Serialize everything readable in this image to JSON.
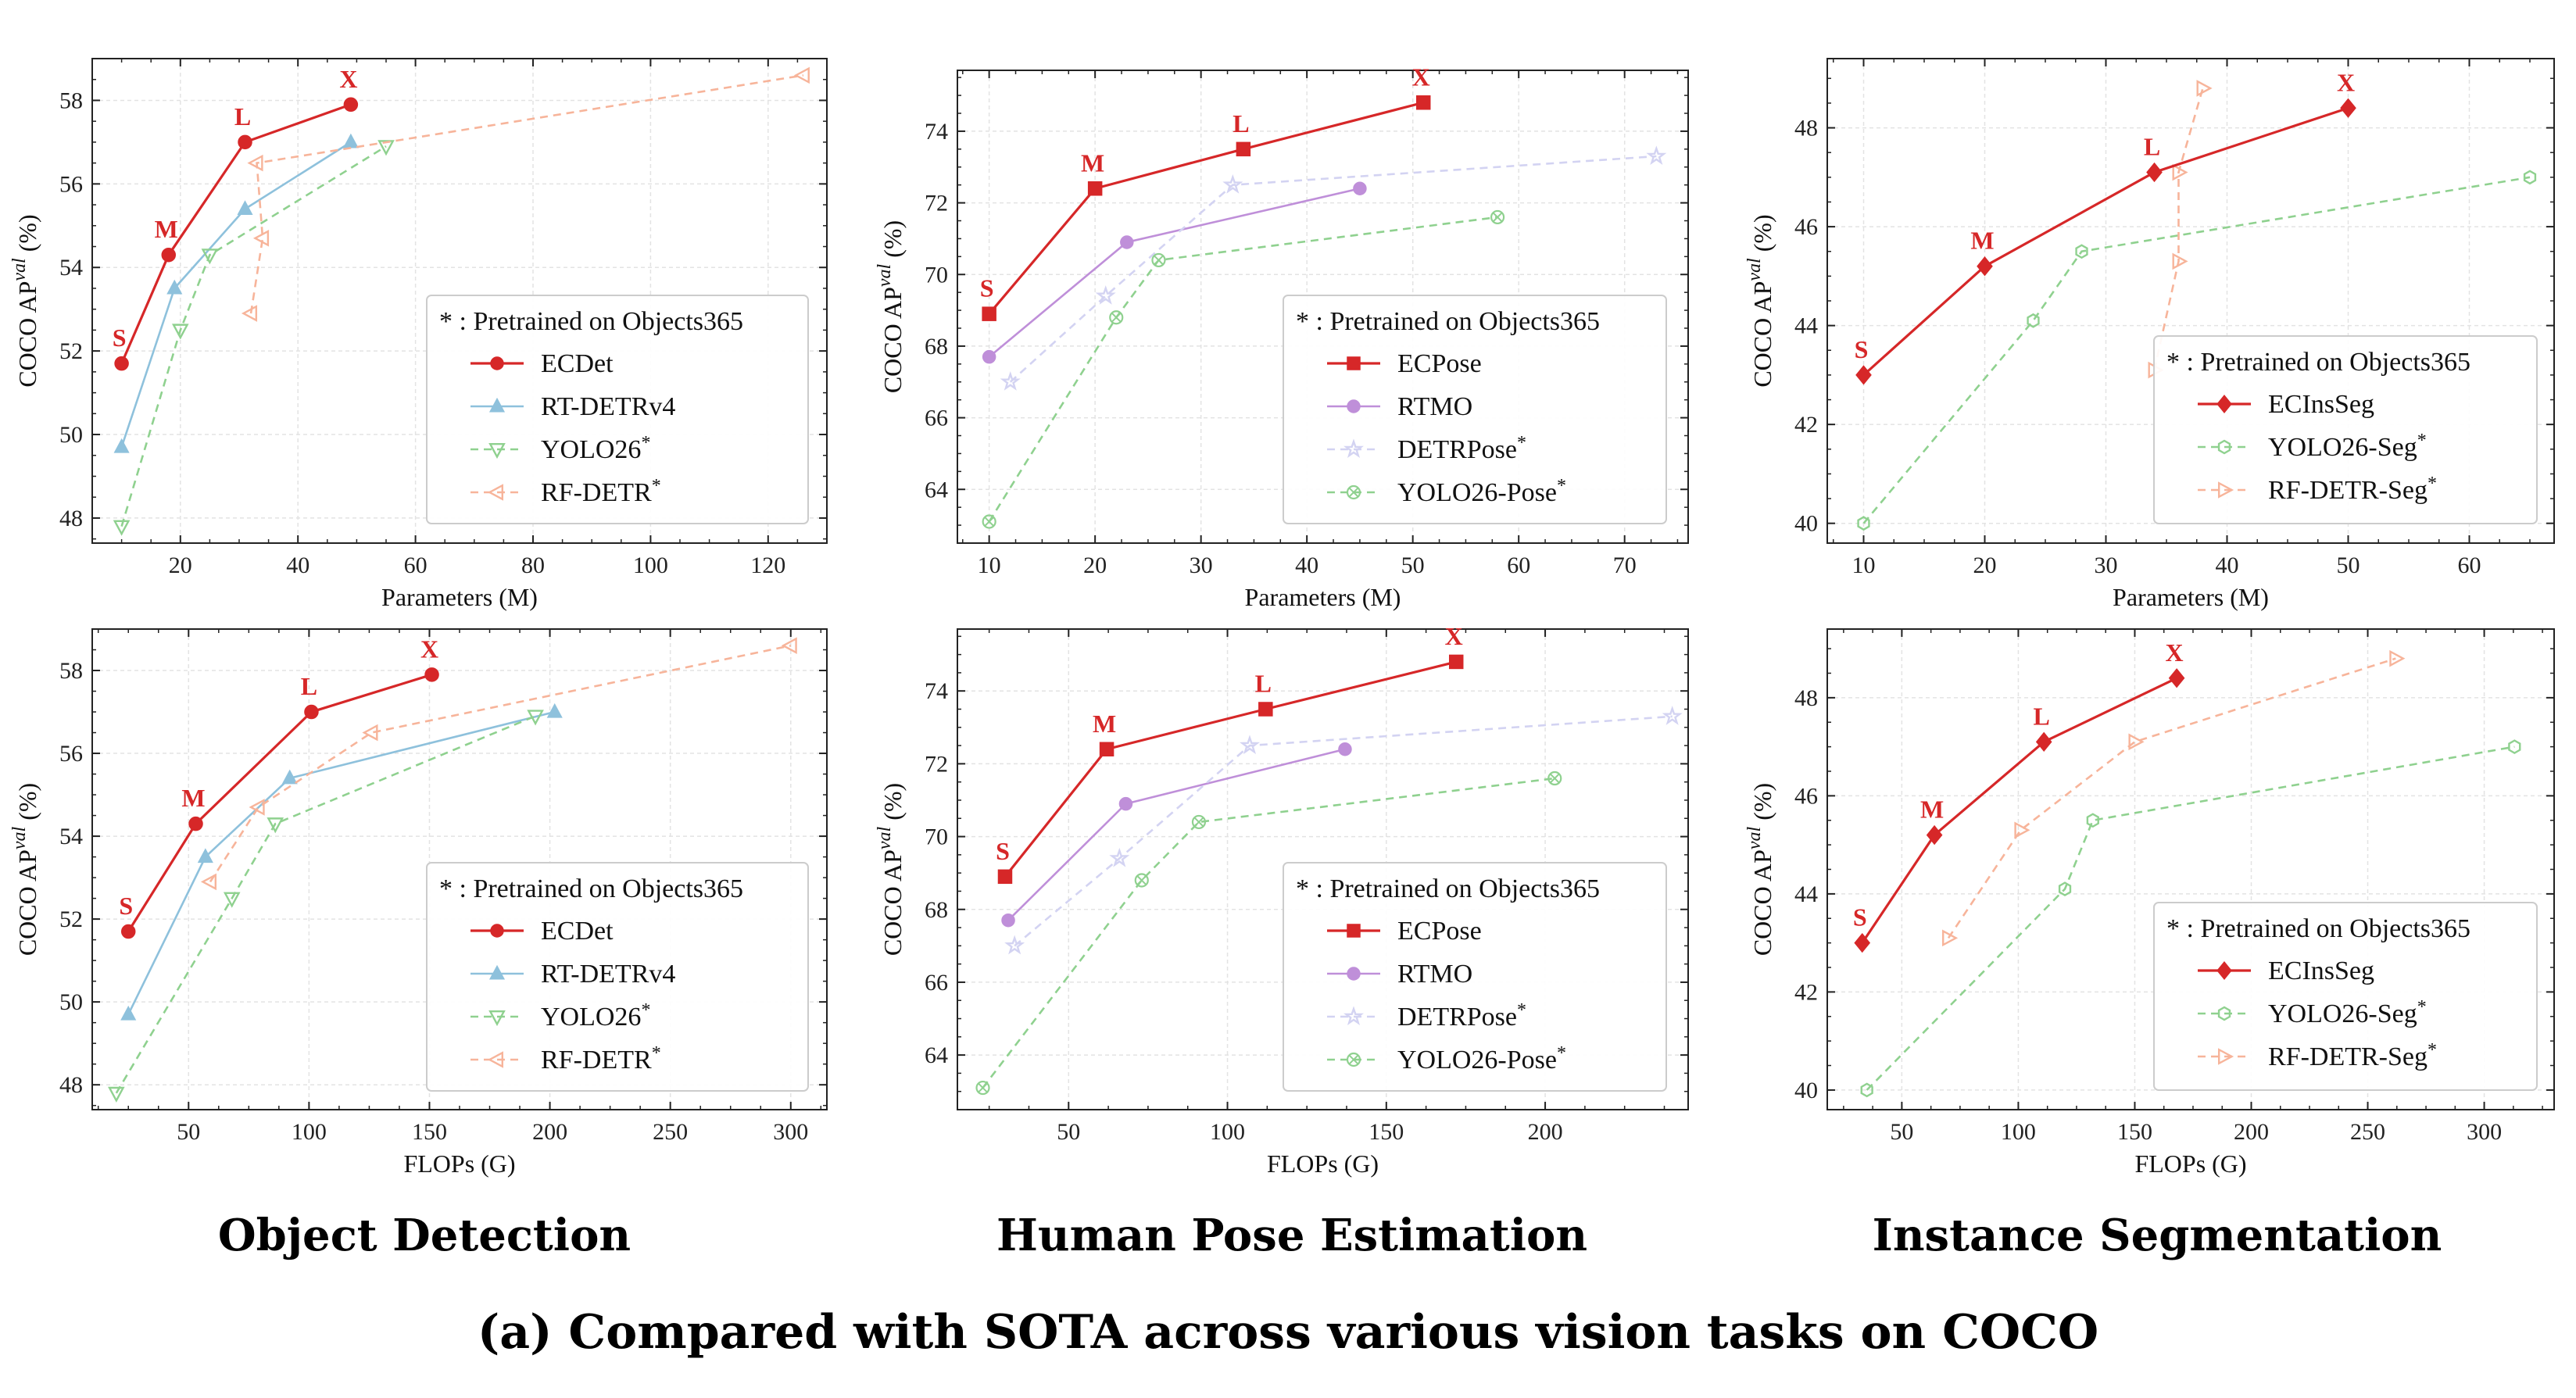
{
  "chart_data": [
    {
      "type": "line",
      "panel": "detection-params",
      "xlabel": "Parameters (M)",
      "ylabel": "COCO AP",
      "ylabel_sup": "val",
      "ylabel_unit": " (%)",
      "xlim": [
        5,
        130
      ],
      "ylim": [
        47.4,
        59.0
      ],
      "xticks": [
        20,
        40,
        60,
        80,
        100,
        120
      ],
      "yticks": [
        48,
        50,
        52,
        54,
        56,
        58
      ],
      "legend_title": "* : Pretrained on Objects365",
      "series": [
        {
          "name": "ECDet",
          "style": "ec",
          "color": "#d62728",
          "marker": "circle",
          "dash": false,
          "star": false,
          "x": [
            10,
            18,
            31,
            49
          ],
          "y": [
            51.7,
            54.3,
            57.0,
            57.9
          ],
          "labels": [
            "S",
            "M",
            "L",
            "X"
          ]
        },
        {
          "name": "RT-DETRv4",
          "color": "#8ec1dc",
          "marker": "triangle-up",
          "dash": false,
          "star": false,
          "x": [
            10,
            19,
            31,
            49
          ],
          "y": [
            49.7,
            53.5,
            55.4,
            57.0
          ]
        },
        {
          "name": "YOLO26",
          "color": "#8fd18f",
          "marker": "triangle-down",
          "dash": true,
          "star": true,
          "x": [
            10,
            20,
            25,
            55
          ],
          "y": [
            47.8,
            52.5,
            54.3,
            56.9
          ]
        },
        {
          "name": "RF-DETR",
          "color": "#f7b49a",
          "marker": "triangle-left",
          "dash": true,
          "star": true,
          "x": [
            32,
            34,
            33,
            126
          ],
          "y": [
            52.9,
            54.7,
            56.5,
            58.6
          ]
        }
      ]
    },
    {
      "type": "line",
      "panel": "pose-params",
      "xlabel": "Parameters (M)",
      "ylabel": "COCO AP",
      "ylabel_sup": "val",
      "ylabel_unit": " (%)",
      "xlim": [
        7,
        76
      ],
      "ylim": [
        62.5,
        75.7
      ],
      "xticks": [
        10,
        20,
        30,
        40,
        50,
        60,
        70
      ],
      "yticks": [
        64,
        66,
        68,
        70,
        72,
        74
      ],
      "legend_title": "* : Pretrained on Objects365",
      "series": [
        {
          "name": "ECPose",
          "style": "ec",
          "color": "#d62728",
          "marker": "square",
          "dash": false,
          "star": false,
          "x": [
            10,
            20,
            34,
            51
          ],
          "y": [
            68.9,
            72.4,
            73.5,
            74.8
          ],
          "labels": [
            "S",
            "M",
            "L",
            "X"
          ]
        },
        {
          "name": "RTMO",
          "color": "#bf8fd9",
          "marker": "circle",
          "dash": false,
          "star": false,
          "x": [
            10,
            23,
            45
          ],
          "y": [
            67.7,
            70.9,
            72.4
          ]
        },
        {
          "name": "DETRPose",
          "color": "#d3d3f2",
          "marker": "star",
          "dash": true,
          "star": true,
          "x": [
            12,
            21,
            33,
            73
          ],
          "y": [
            67.0,
            69.4,
            72.5,
            73.3
          ]
        },
        {
          "name": "YOLO26-Pose",
          "color": "#8fd18f",
          "marker": "circle-x",
          "dash": true,
          "star": true,
          "x": [
            10,
            22,
            26,
            58
          ],
          "y": [
            63.1,
            68.8,
            70.4,
            71.6
          ]
        }
      ]
    },
    {
      "type": "line",
      "panel": "seg-params",
      "xlabel": "Parameters (M)",
      "ylabel": "COCO AP",
      "ylabel_sup": "val",
      "ylabel_unit": " (%)",
      "xlim": [
        7,
        67
      ],
      "ylim": [
        39.6,
        49.4
      ],
      "xticks": [
        10,
        20,
        30,
        40,
        50,
        60
      ],
      "yticks": [
        40,
        42,
        44,
        46,
        48
      ],
      "legend_title": "* : Pretrained on Objects365",
      "series": [
        {
          "name": "ECInsSeg",
          "style": "ec",
          "color": "#d62728",
          "marker": "diamond",
          "dash": false,
          "star": false,
          "x": [
            10,
            20,
            34,
            50
          ],
          "y": [
            43.0,
            45.2,
            47.1,
            48.4
          ],
          "labels": [
            "S",
            "M",
            "L",
            "X"
          ]
        },
        {
          "name": "YOLO26-Seg",
          "color": "#8fd18f",
          "marker": "hexagon",
          "dash": true,
          "star": true,
          "x": [
            10,
            24,
            28,
            65
          ],
          "y": [
            40.0,
            44.1,
            45.5,
            47.0
          ]
        },
        {
          "name": "RF-DETR-Seg",
          "color": "#f7b49a",
          "marker": "triangle-right",
          "dash": true,
          "star": true,
          "x": [
            34,
            36,
            36,
            38
          ],
          "y": [
            43.1,
            45.3,
            47.1,
            48.8
          ]
        }
      ]
    },
    {
      "type": "line",
      "panel": "detection-flops",
      "xlabel": "FLOPs (G)",
      "ylabel": "COCO AP",
      "ylabel_sup": "val",
      "ylabel_unit": " (%)",
      "xlim": [
        10,
        315
      ],
      "ylim": [
        47.4,
        59.0
      ],
      "xticks": [
        50,
        100,
        150,
        200,
        250,
        300
      ],
      "yticks": [
        48,
        50,
        52,
        54,
        56,
        58
      ],
      "legend_title": "* : Pretrained on Objects365",
      "series": [
        {
          "name": "ECDet",
          "style": "ec",
          "color": "#d62728",
          "marker": "circle",
          "dash": false,
          "star": false,
          "x": [
            25,
            53,
            101,
            151
          ],
          "y": [
            51.7,
            54.3,
            57.0,
            57.9
          ],
          "labels": [
            "S",
            "M",
            "L",
            "X"
          ]
        },
        {
          "name": "RT-DETRv4",
          "color": "#8ec1dc",
          "marker": "triangle-up",
          "dash": false,
          "star": false,
          "x": [
            25,
            57,
            92,
            202
          ],
          "y": [
            49.7,
            53.5,
            55.4,
            57.0
          ]
        },
        {
          "name": "YOLO26",
          "color": "#8fd18f",
          "marker": "triangle-down",
          "dash": true,
          "star": true,
          "x": [
            20,
            68,
            86,
            194
          ],
          "y": [
            47.8,
            52.5,
            54.3,
            56.9
          ]
        },
        {
          "name": "RF-DETR",
          "color": "#f7b49a",
          "marker": "triangle-left",
          "dash": true,
          "star": true,
          "x": [
            59,
            79,
            126,
            300
          ],
          "y": [
            52.9,
            54.7,
            56.5,
            58.6
          ]
        }
      ]
    },
    {
      "type": "line",
      "panel": "pose-flops",
      "xlabel": "FLOPs (G)",
      "ylabel": "COCO AP",
      "ylabel_sup": "val",
      "ylabel_unit": " (%)",
      "xlim": [
        15,
        245
      ],
      "ylim": [
        62.5,
        75.7
      ],
      "xticks": [
        50,
        100,
        150,
        200
      ],
      "yticks": [
        64,
        66,
        68,
        70,
        72,
        74
      ],
      "legend_title": "* : Pretrained on Objects365",
      "series": [
        {
          "name": "ECPose",
          "style": "ec",
          "color": "#d62728",
          "marker": "square",
          "dash": false,
          "star": false,
          "x": [
            30,
            62,
            112,
            172
          ],
          "y": [
            68.9,
            72.4,
            73.5,
            74.8
          ],
          "labels": [
            "S",
            "M",
            "L",
            "X"
          ]
        },
        {
          "name": "RTMO",
          "color": "#bf8fd9",
          "marker": "circle",
          "dash": false,
          "star": false,
          "x": [
            31,
            68,
            137
          ],
          "y": [
            67.7,
            70.9,
            72.4
          ]
        },
        {
          "name": "DETRPose",
          "color": "#d3d3f2",
          "marker": "star",
          "dash": true,
          "star": true,
          "x": [
            33,
            66,
            107,
            240
          ],
          "y": [
            67.0,
            69.4,
            72.5,
            73.3
          ]
        },
        {
          "name": "YOLO26-Pose",
          "color": "#8fd18f",
          "marker": "circle-x",
          "dash": true,
          "star": true,
          "x": [
            23,
            73,
            91,
            203
          ],
          "y": [
            63.1,
            68.8,
            70.4,
            71.6
          ]
        }
      ]
    },
    {
      "type": "line",
      "panel": "seg-flops",
      "xlabel": "FLOPs (G)",
      "ylabel": "COCO AP",
      "ylabel_sup": "val",
      "ylabel_unit": " (%)",
      "xlim": [
        18,
        330
      ],
      "ylim": [
        39.6,
        49.4
      ],
      "xticks": [
        50,
        100,
        150,
        200,
        250,
        300
      ],
      "yticks": [
        40,
        42,
        44,
        46,
        48
      ],
      "legend_title": "* : Pretrained on Objects365",
      "series": [
        {
          "name": "ECInsSeg",
          "style": "ec",
          "color": "#d62728",
          "marker": "diamond",
          "dash": false,
          "star": false,
          "x": [
            33,
            64,
            111,
            168
          ],
          "y": [
            43.0,
            45.2,
            47.1,
            48.4
          ],
          "labels": [
            "S",
            "M",
            "L",
            "X"
          ]
        },
        {
          "name": "YOLO26-Seg",
          "color": "#8fd18f",
          "marker": "hexagon",
          "dash": true,
          "star": true,
          "x": [
            35,
            120,
            132,
            313
          ],
          "y": [
            40.0,
            44.1,
            45.5,
            47.0
          ]
        },
        {
          "name": "RF-DETR-Seg",
          "color": "#f7b49a",
          "marker": "triangle-right",
          "dash": true,
          "star": true,
          "x": [
            70,
            101,
            150,
            262
          ],
          "y": [
            43.1,
            45.3,
            47.1,
            48.8
          ]
        }
      ]
    }
  ],
  "task_titles": [
    "Object Detection",
    "Human Pose Estimation",
    "Instance Segmentation"
  ],
  "caption": "(a) Compared with SOTA across various vision tasks on COCO"
}
